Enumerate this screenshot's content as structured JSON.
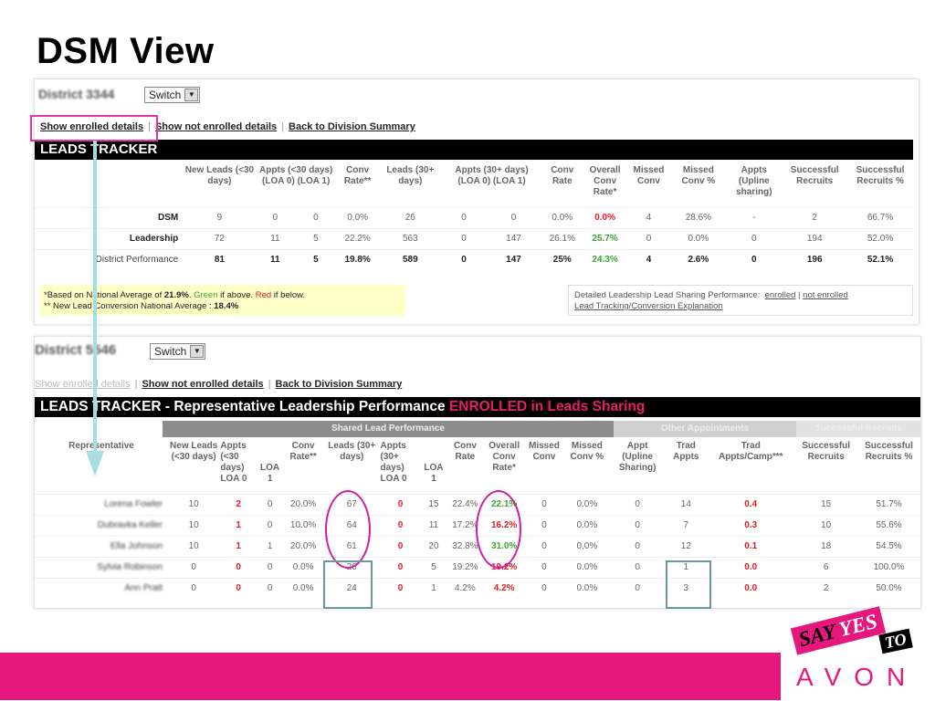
{
  "page_title": "DSM View",
  "shot1": {
    "district": "District 3344",
    "switch_label": "Switch",
    "links": [
      "Show enrolled details",
      "Show not enrolled details",
      "Back to Division Summary"
    ],
    "bar_title": "LEADS TRACKER",
    "headers": [
      "",
      "New Leads (<30 days)",
      "Appts (<30 days) (LOA 0) (LOA 1)",
      "",
      "Conv Rate**",
      "Leads (30+ days)",
      "Appts (30+ days) (LOA 0) (LOA 1)",
      "",
      "Conv Rate",
      "Overall Conv Rate*",
      "Missed Conv",
      "Missed Conv %",
      "Appts (Upline sharing)",
      "Successful Recruits",
      "Successful Recruits %"
    ],
    "rows": [
      {
        "label": "DSM",
        "cells": [
          "9",
          "0",
          "0",
          "0.0%",
          "26",
          "0",
          "0",
          "0.0%",
          "0.0%",
          "4",
          "28.6%",
          "-",
          "2",
          "66.7%"
        ]
      },
      {
        "label": "Leadership",
        "cells": [
          "72",
          "11",
          "5",
          "22.2%",
          "563",
          "0",
          "147",
          "26.1%",
          "25.7%",
          "0",
          "0.0%",
          "0",
          "194",
          "52.0%"
        ]
      },
      {
        "label": "District Performance",
        "cells": [
          "81",
          "11",
          "5",
          "19.8%",
          "589",
          "0",
          "147",
          "25%",
          "24.3%",
          "4",
          "2.6%",
          "0",
          "196",
          "52.1%"
        ]
      }
    ],
    "notes_line1_a": "*Based on National Average of ",
    "notes_line1_b": "21.9%",
    "notes_line1_c": ". ",
    "notes_line1_green": "Green",
    "notes_line1_d": " if above. ",
    "notes_line1_red": "Red",
    "notes_line1_e": " if below.",
    "notes_line2_a": "** New Lead Conversion National Average : ",
    "notes_line2_b": "18.4%",
    "detail_text": "Detailed Leadership Lead Sharing Performance:",
    "detail_link1": "enrolled",
    "detail_link2": "not enrolled",
    "detail_link3": "Lead Tracking/Conversion Explanation"
  },
  "shot2": {
    "district": "District 5546",
    "switch_label": "Switch",
    "links": [
      "Show enrolled details",
      "Show not enrolled details",
      "Back to Division Summary"
    ],
    "bar_title": "LEADS TRACKER - Representative Leadership Performance ",
    "bar_highlight": "ENROLLED in Leads Sharing",
    "group_shared": "Shared Lead Performance",
    "group_other": "Other Appointments",
    "group_success": "Successful Recruits",
    "headers": [
      "Representative",
      "New Leads (<30 days)",
      "Appts (<30 days) LOA 0",
      "LOA 1",
      "Conv Rate**",
      "Leads (30+ days)",
      "Appts (30+ days) LOA 0",
      "LOA 1",
      "Conv Rate",
      "Overall Conv Rate*",
      "Missed Conv",
      "Missed Conv %",
      "Appt (Upline Sharing)",
      "Trad Appts",
      "Trad Appts/Camp***",
      "Successful Recruits",
      "Successful Recruits %"
    ],
    "rows": [
      {
        "rep": "Lorena Fowler",
        "cells": [
          "10",
          "2",
          "0",
          "20.0%",
          "67",
          "0",
          "15",
          "22.4%",
          "22.1%",
          "0",
          "0.0%",
          "0",
          "14",
          "0.4",
          "15",
          "51.7%"
        ]
      },
      {
        "rep": "Dubravka Keller",
        "cells": [
          "10",
          "1",
          "0",
          "10.0%",
          "64",
          "0",
          "11",
          "17.2%",
          "16.2%",
          "0",
          "0.0%",
          "0",
          "7",
          "0.3",
          "10",
          "55.6%"
        ]
      },
      {
        "rep": "Ella Johnson",
        "cells": [
          "10",
          "1",
          "1",
          "20.0%",
          "61",
          "0",
          "20",
          "32.8%",
          "31.0%",
          "0",
          "0.0%",
          "0",
          "12",
          "0.1",
          "18",
          "54.5%"
        ]
      },
      {
        "rep": "Sylvia Robinson",
        "cells": [
          "0",
          "0",
          "0",
          "0.0%",
          "26",
          "0",
          "5",
          "19.2%",
          "19.2%",
          "0",
          "0.0%",
          "0",
          "1",
          "0.0",
          "6",
          "100.0%"
        ]
      },
      {
        "rep": "Ann Pratt",
        "cells": [
          "0",
          "0",
          "0",
          "0.0%",
          "24",
          "0",
          "1",
          "4.2%",
          "4.2%",
          "0",
          "0.0%",
          "0",
          "3",
          "0.0",
          "2",
          "50.0%"
        ]
      }
    ]
  },
  "logo": {
    "say": "SAY",
    "yes": "YES",
    "to": "TO",
    "avon": "AVON"
  },
  "colors": {
    "brand_pink": "#e6187d",
    "highlight_pink": "#e631a3",
    "teal_box": "#6b979d",
    "arrow": "#a9dce2",
    "red": "#e31b23",
    "green": "#3aa82d"
  }
}
